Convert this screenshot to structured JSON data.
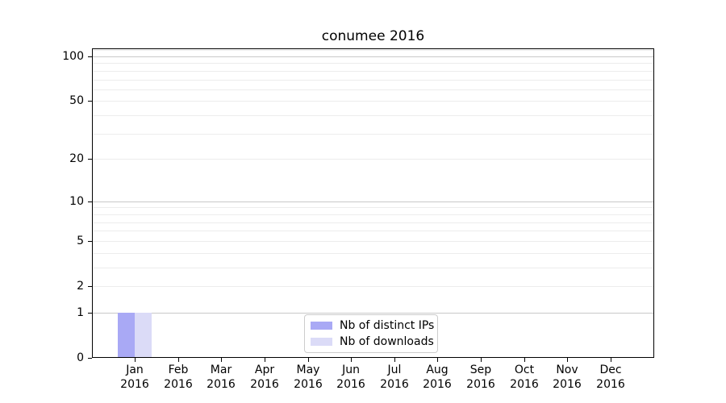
{
  "page": {
    "background": "#ffffff"
  },
  "chart_data": {
    "type": "bar",
    "title": "conumee 2016",
    "categories": [
      "Jan",
      "Feb",
      "Mar",
      "Apr",
      "May",
      "Jun",
      "Jul",
      "Aug",
      "Sep",
      "Oct",
      "Nov",
      "Dec"
    ],
    "category_year": "2016",
    "series": [
      {
        "name": "Nb of distinct IPs",
        "color": "#a9a9f5",
        "values": [
          1,
          0,
          0,
          0,
          0,
          0,
          0,
          0,
          0,
          0,
          0,
          0
        ]
      },
      {
        "name": "Nb of downloads",
        "color": "#dbdbf7",
        "values": [
          1,
          0,
          0,
          0,
          0,
          0,
          0,
          0,
          0,
          0,
          0,
          0
        ]
      }
    ],
    "yticks": [
      0,
      1,
      2,
      5,
      10,
      20,
      50,
      100
    ],
    "major_gridlines": [
      1,
      10,
      100
    ],
    "minor_gridlines": [
      2,
      3,
      4,
      5,
      6,
      7,
      8,
      9,
      20,
      30,
      40,
      50,
      60,
      70,
      80,
      90,
      110
    ],
    "scale": "log10(1+x)",
    "ylim": [
      0,
      113
    ],
    "grid": true,
    "legend_position": "bottom-center",
    "colors": {
      "major_grid": "#c9c9c9",
      "minor_grid": "#ececec",
      "axis": "#000000",
      "text": "#000000"
    }
  }
}
